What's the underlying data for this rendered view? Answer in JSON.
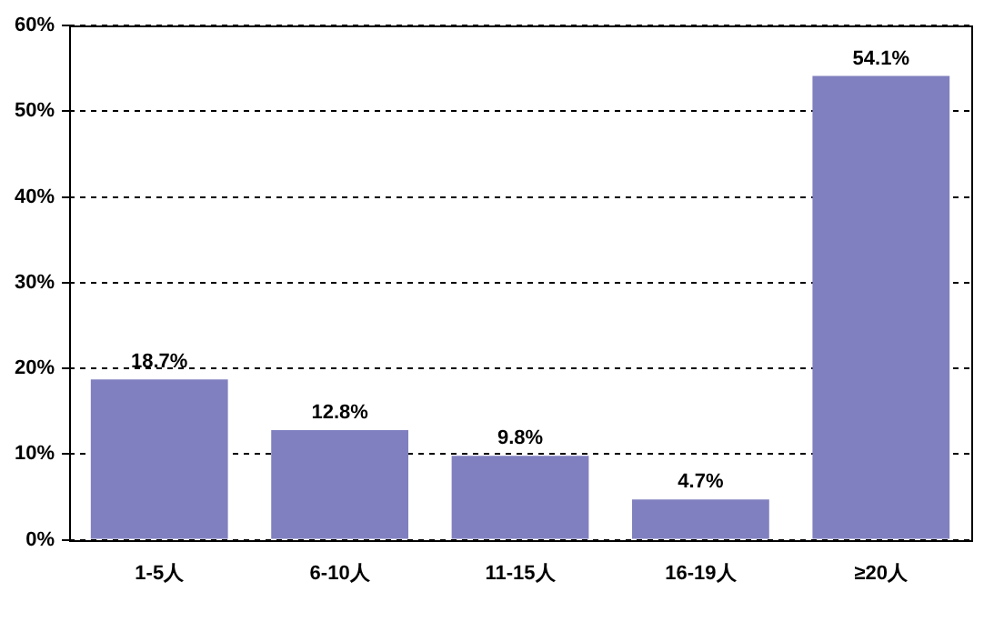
{
  "chart_data": {
    "type": "bar",
    "categories": [
      "1-5人",
      "6-10人",
      "11-15人",
      "16-19人",
      "≥20人"
    ],
    "values": [
      18.7,
      12.8,
      9.8,
      4.7,
      54.1
    ],
    "value_labels": [
      "18.7%",
      "12.8%",
      "9.8%",
      "4.7%",
      "54.1%"
    ],
    "color": "#8080c0",
    "ylim": [
      0,
      60
    ],
    "yticks": [
      {
        "value": 0,
        "label": "0%"
      },
      {
        "value": 10,
        "label": "10%"
      },
      {
        "value": 20,
        "label": "20%"
      },
      {
        "value": 30,
        "label": "30%"
      },
      {
        "value": 40,
        "label": "40%"
      },
      {
        "value": 50,
        "label": "50%"
      },
      {
        "value": 60,
        "label": "60%"
      }
    ],
    "grid": "y"
  }
}
